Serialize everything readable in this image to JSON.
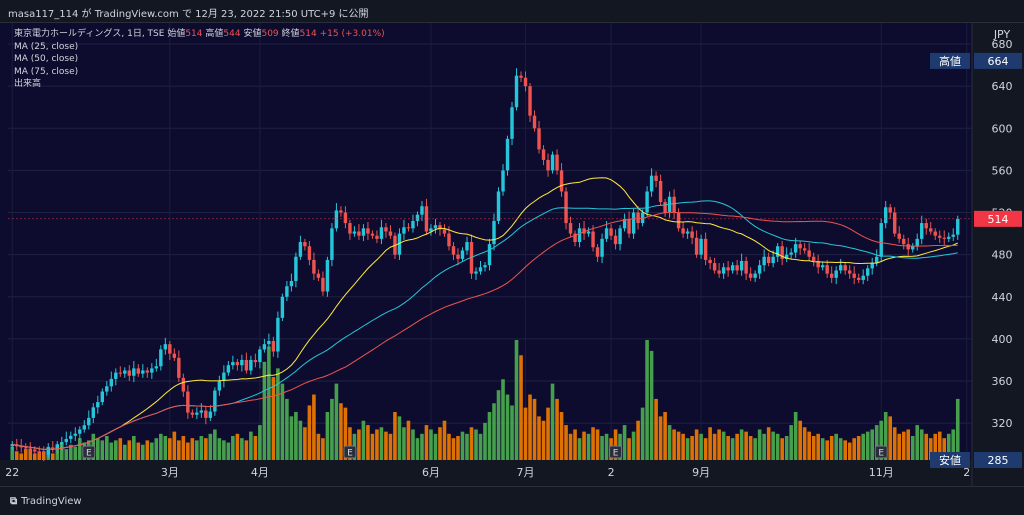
{
  "header": {
    "caption": "masa117_114 が TradingView.com で 12月 23, 2022 21:50 UTC+9 に公開"
  },
  "legend": {
    "symbol": "東京電力ホールディングス, 1日, TSE",
    "open_label": "始値",
    "open": "514",
    "high_label": "高値",
    "high": "544",
    "low_label": "安値",
    "low": "509",
    "close_label": "終値",
    "close": "514",
    "change": "+15 (+3.01%)",
    "indicators": [
      "MA (25, close)",
      "MA (50, close)",
      "MA (75, close)",
      "出来高"
    ]
  },
  "axis": {
    "currency": "JPY",
    "high_tag_label": "高値",
    "high_tag_value": "664",
    "last_tag_value": "514",
    "low_tag_label": "安値",
    "low_tag_value": "285"
  },
  "footer": {
    "brand": "TradingView"
  },
  "colors": {
    "background": "#0d0c2e",
    "up": "#26c6da",
    "down": "#ef5350",
    "vol_up": "#4caf50",
    "vol_down": "#f57c00",
    "ma25": "#ffeb3b",
    "ma50": "#26c6da",
    "ma75": "#ef5350",
    "price_tag": "#1e3a6e",
    "last_tag": "#f23645",
    "earnings_icon": "E"
  },
  "chart_data": {
    "type": "candlestick",
    "title": "",
    "y_ticks": [
      320,
      360,
      400,
      440,
      480,
      520,
      560,
      600,
      640,
      680
    ],
    "ylim": [
      285,
      700
    ],
    "x_labels": [
      {
        "i": 0,
        "label": "22"
      },
      {
        "i": 35,
        "label": "3月"
      },
      {
        "i": 55,
        "label": "4月"
      },
      {
        "i": 93,
        "label": "6月"
      },
      {
        "i": 114,
        "label": "7月"
      },
      {
        "i": 133,
        "label": "2"
      },
      {
        "i": 153,
        "label": "9月"
      },
      {
        "i": 193,
        "label": "11月"
      },
      {
        "i": 212,
        "label": "2"
      }
    ],
    "earnings_markers": [
      17,
      75,
      134,
      193
    ],
    "series": [
      {
        "type": "close",
        "values": [
          300,
          298,
          297,
          296,
          295,
          293,
          291,
          290,
          297,
          296,
          300,
          302,
          305,
          308,
          310,
          314,
          318,
          325,
          335,
          340,
          350,
          355,
          362,
          368,
          367,
          370,
          365,
          372,
          367,
          370,
          368,
          372,
          374,
          390,
          395,
          386,
          382,
          363,
          350,
          330,
          328,
          330,
          332,
          325,
          331,
          351,
          360,
          368,
          375,
          378,
          375,
          380,
          370,
          380,
          378,
          390,
          395,
          398,
          388,
          420,
          440,
          450,
          455,
          478,
          492,
          488,
          475,
          462,
          458,
          445,
          475,
          505,
          522,
          520,
          510,
          500,
          502,
          498,
          505,
          500,
          498,
          495,
          506,
          502,
          498,
          480,
          500,
          506,
          505,
          512,
          518,
          526,
          502,
          505,
          508,
          504,
          500,
          488,
          480,
          476,
          484,
          492,
          462,
          464,
          468,
          470,
          490,
          512,
          540,
          560,
          590,
          620,
          650,
          648,
          640,
          612,
          600,
          580,
          570,
          560,
          575,
          560,
          540,
          510,
          500,
          492,
          505,
          500,
          502,
          487,
          478,
          495,
          505,
          498,
          490,
          505,
          514,
          500,
          520,
          510,
          520,
          540,
          555,
          550,
          530,
          520,
          535,
          520,
          505,
          500,
          502,
          496,
          480,
          495,
          475,
          472,
          465,
          462,
          468,
          465,
          470,
          465,
          474,
          462,
          458,
          462,
          470,
          478,
          472,
          478,
          488,
          476,
          480,
          482,
          490,
          486,
          484,
          478,
          474,
          468,
          470,
          462,
          458,
          465,
          470,
          465,
          462,
          458,
          456,
          460,
          467,
          472,
          478,
          510,
          525,
          520,
          500,
          495,
          490,
          485,
          488,
          495,
          510,
          505,
          502,
          498,
          496,
          495,
          497,
          499,
          514
        ]
      },
      {
        "type": "ma",
        "name": "MA (25, close)"
      },
      {
        "type": "ma",
        "name": "MA (50, close)"
      },
      {
        "type": "ma",
        "name": "MA (75, close)"
      },
      {
        "type": "volume",
        "name": "出来高",
        "values": [
          6,
          4,
          3,
          5,
          5,
          3,
          4,
          4,
          6,
          3,
          7,
          8,
          5,
          7,
          6,
          10,
          8,
          9,
          12,
          10,
          9,
          11,
          8,
          9,
          10,
          7,
          9,
          11,
          8,
          7,
          9,
          8,
          10,
          12,
          11,
          10,
          13,
          9,
          11,
          8,
          10,
          9,
          11,
          10,
          12,
          14,
          10,
          9,
          8,
          11,
          12,
          10,
          9,
          13,
          11,
          16,
          45,
          52,
          38,
          42,
          35,
          28,
          20,
          22,
          18,
          15,
          25,
          30,
          12,
          10,
          22,
          28,
          35,
          26,
          24,
          15,
          12,
          14,
          18,
          16,
          12,
          14,
          15,
          13,
          12,
          22,
          20,
          15,
          18,
          14,
          10,
          12,
          16,
          14,
          12,
          15,
          18,
          12,
          10,
          11,
          13,
          12,
          15,
          14,
          12,
          17,
          22,
          26,
          32,
          37,
          30,
          25,
          55,
          48,
          24,
          30,
          28,
          20,
          18,
          24,
          35,
          28,
          22,
          16,
          12,
          14,
          10,
          13,
          12,
          15,
          14,
          11,
          12,
          10,
          14,
          12,
          16,
          10,
          13,
          18,
          24,
          55,
          50,
          28,
          20,
          22,
          16,
          14,
          13,
          12,
          10,
          11,
          14,
          12,
          10,
          15,
          12,
          14,
          13,
          11,
          10,
          12,
          14,
          13,
          11,
          10,
          14,
          12,
          15,
          13,
          12,
          10,
          11,
          16,
          22,
          18,
          15,
          13,
          11,
          12,
          10,
          9,
          11,
          12,
          10,
          9,
          8,
          10,
          11,
          12,
          13,
          14,
          16,
          18,
          22,
          20,
          15,
          12,
          13,
          14,
          11,
          16,
          14,
          12,
          10,
          12,
          13,
          10,
          12,
          14,
          28
        ]
      }
    ]
  }
}
